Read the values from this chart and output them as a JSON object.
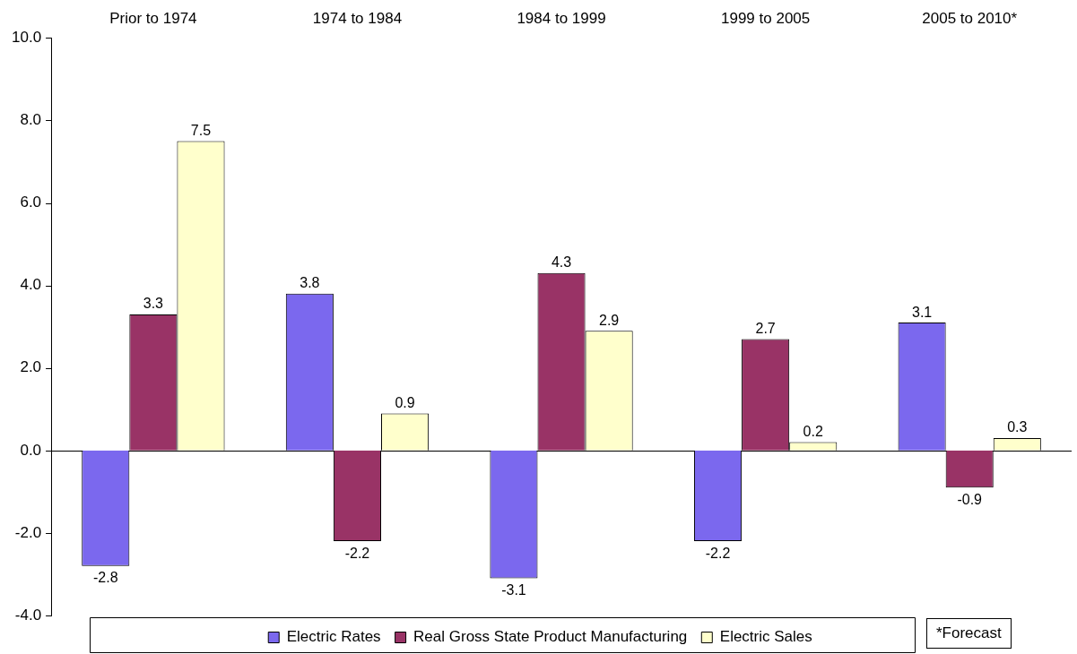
{
  "chart_data": {
    "type": "bar",
    "categories": [
      "Prior to 1974",
      "1974 to 1984",
      "1984 to 1999",
      "1999 to 2005",
      "2005 to 2010*"
    ],
    "series": [
      {
        "name": "Electric Rates",
        "color": "#7b68ee",
        "values": [
          -2.8,
          3.8,
          -3.1,
          -2.2,
          3.1
        ]
      },
      {
        "name": "Real Gross State Product Manufacturing",
        "color": "#993366",
        "values": [
          3.3,
          -2.2,
          4.3,
          2.7,
          -0.9
        ]
      },
      {
        "name": "Electric Sales",
        "color": "#ffffcc",
        "values": [
          7.5,
          0.9,
          2.9,
          0.2,
          0.3
        ]
      }
    ],
    "ylim": [
      -4,
      10
    ],
    "yticks": [
      {
        "value": -4,
        "label": "-4.0"
      },
      {
        "value": -2,
        "label": "-2.0"
      },
      {
        "value": 0,
        "label": "0.0"
      },
      {
        "value": 2,
        "label": "2.0"
      },
      {
        "value": 4,
        "label": "4.0"
      },
      {
        "value": 6,
        "label": "6.0"
      },
      {
        "value": 8,
        "label": "8.0"
      },
      {
        "value": 10,
        "label": "10.0"
      }
    ],
    "data_labels": true,
    "grid": false,
    "ref_lines": [
      {
        "axis": "y",
        "value": 0,
        "color": "#000000"
      }
    ],
    "legend": "bottom",
    "annotations": [
      "*Forecast"
    ]
  }
}
